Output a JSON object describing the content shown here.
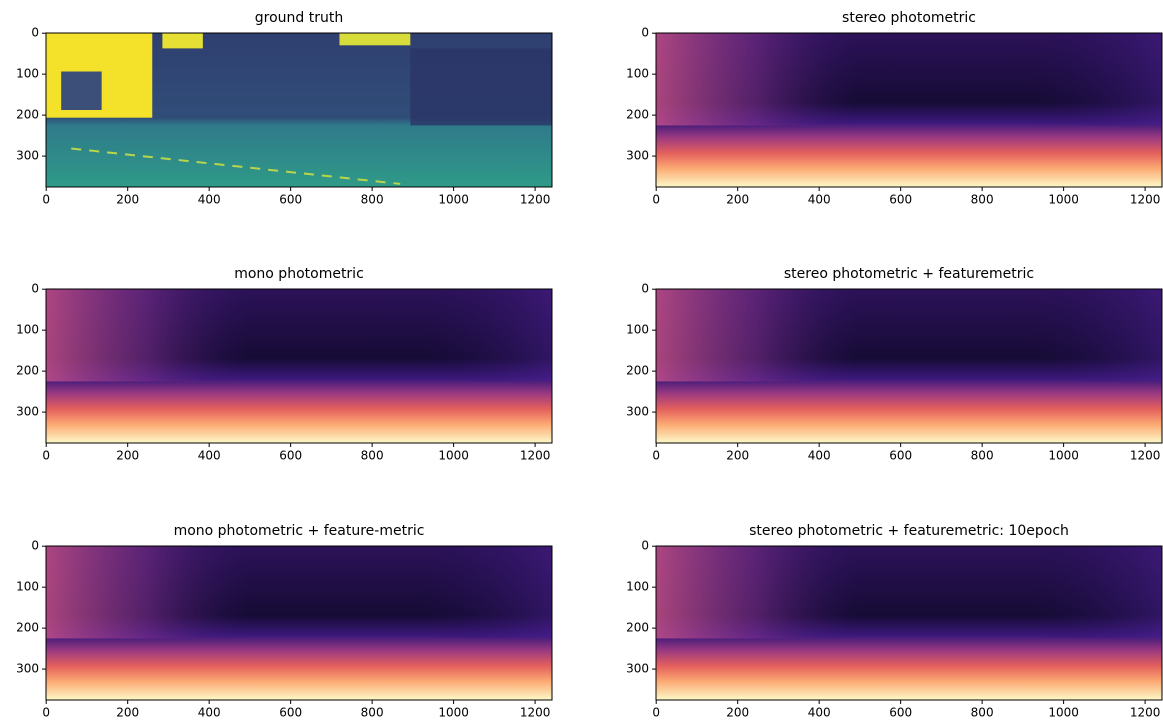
{
  "chart_data": [
    {
      "type": "image",
      "title": "ground truth",
      "colormap": "viridis",
      "xlim": [
        -0.5,
        1241.5
      ],
      "ylim": [
        375.5,
        -0.5
      ],
      "xticks": [
        0,
        200,
        400,
        600,
        800,
        1000,
        1200
      ],
      "yticks": [
        0,
        100,
        200,
        300
      ]
    },
    {
      "type": "image",
      "title": "stereo photometric",
      "colormap": "magma",
      "xlim": [
        -0.5,
        1241.5
      ],
      "ylim": [
        375.5,
        -0.5
      ],
      "xticks": [
        0,
        200,
        400,
        600,
        800,
        1000,
        1200
      ],
      "yticks": [
        0,
        100,
        200,
        300
      ]
    },
    {
      "type": "image",
      "title": "mono photometric",
      "colormap": "magma",
      "xlim": [
        -0.5,
        1241.5
      ],
      "ylim": [
        375.5,
        -0.5
      ],
      "xticks": [
        0,
        200,
        400,
        600,
        800,
        1000,
        1200
      ],
      "yticks": [
        0,
        100,
        200,
        300
      ]
    },
    {
      "type": "image",
      "title": "stereo photometric + featuremetric",
      "colormap": "magma",
      "xlim": [
        -0.5,
        1241.5
      ],
      "ylim": [
        375.5,
        -0.5
      ],
      "xticks": [
        0,
        200,
        400,
        600,
        800,
        1000,
        1200
      ],
      "yticks": [
        0,
        100,
        200,
        300
      ]
    },
    {
      "type": "image",
      "title": "mono photometric + feature-metric",
      "colormap": "magma",
      "xlim": [
        -0.5,
        1241.5
      ],
      "ylim": [
        375.5,
        -0.5
      ],
      "xticks": [
        0,
        200,
        400,
        600,
        800,
        1000,
        1200
      ],
      "yticks": [
        0,
        100,
        200,
        300
      ]
    },
    {
      "type": "image",
      "title": "stereo photometric + featuremetric: 10epoch",
      "colormap": "magma",
      "xlim": [
        -0.5,
        1241.5
      ],
      "ylim": [
        375.5,
        -0.5
      ],
      "xticks": [
        0,
        200,
        400,
        600,
        800,
        1000,
        1200
      ],
      "yticks": [
        0,
        100,
        200,
        300
      ]
    }
  ]
}
